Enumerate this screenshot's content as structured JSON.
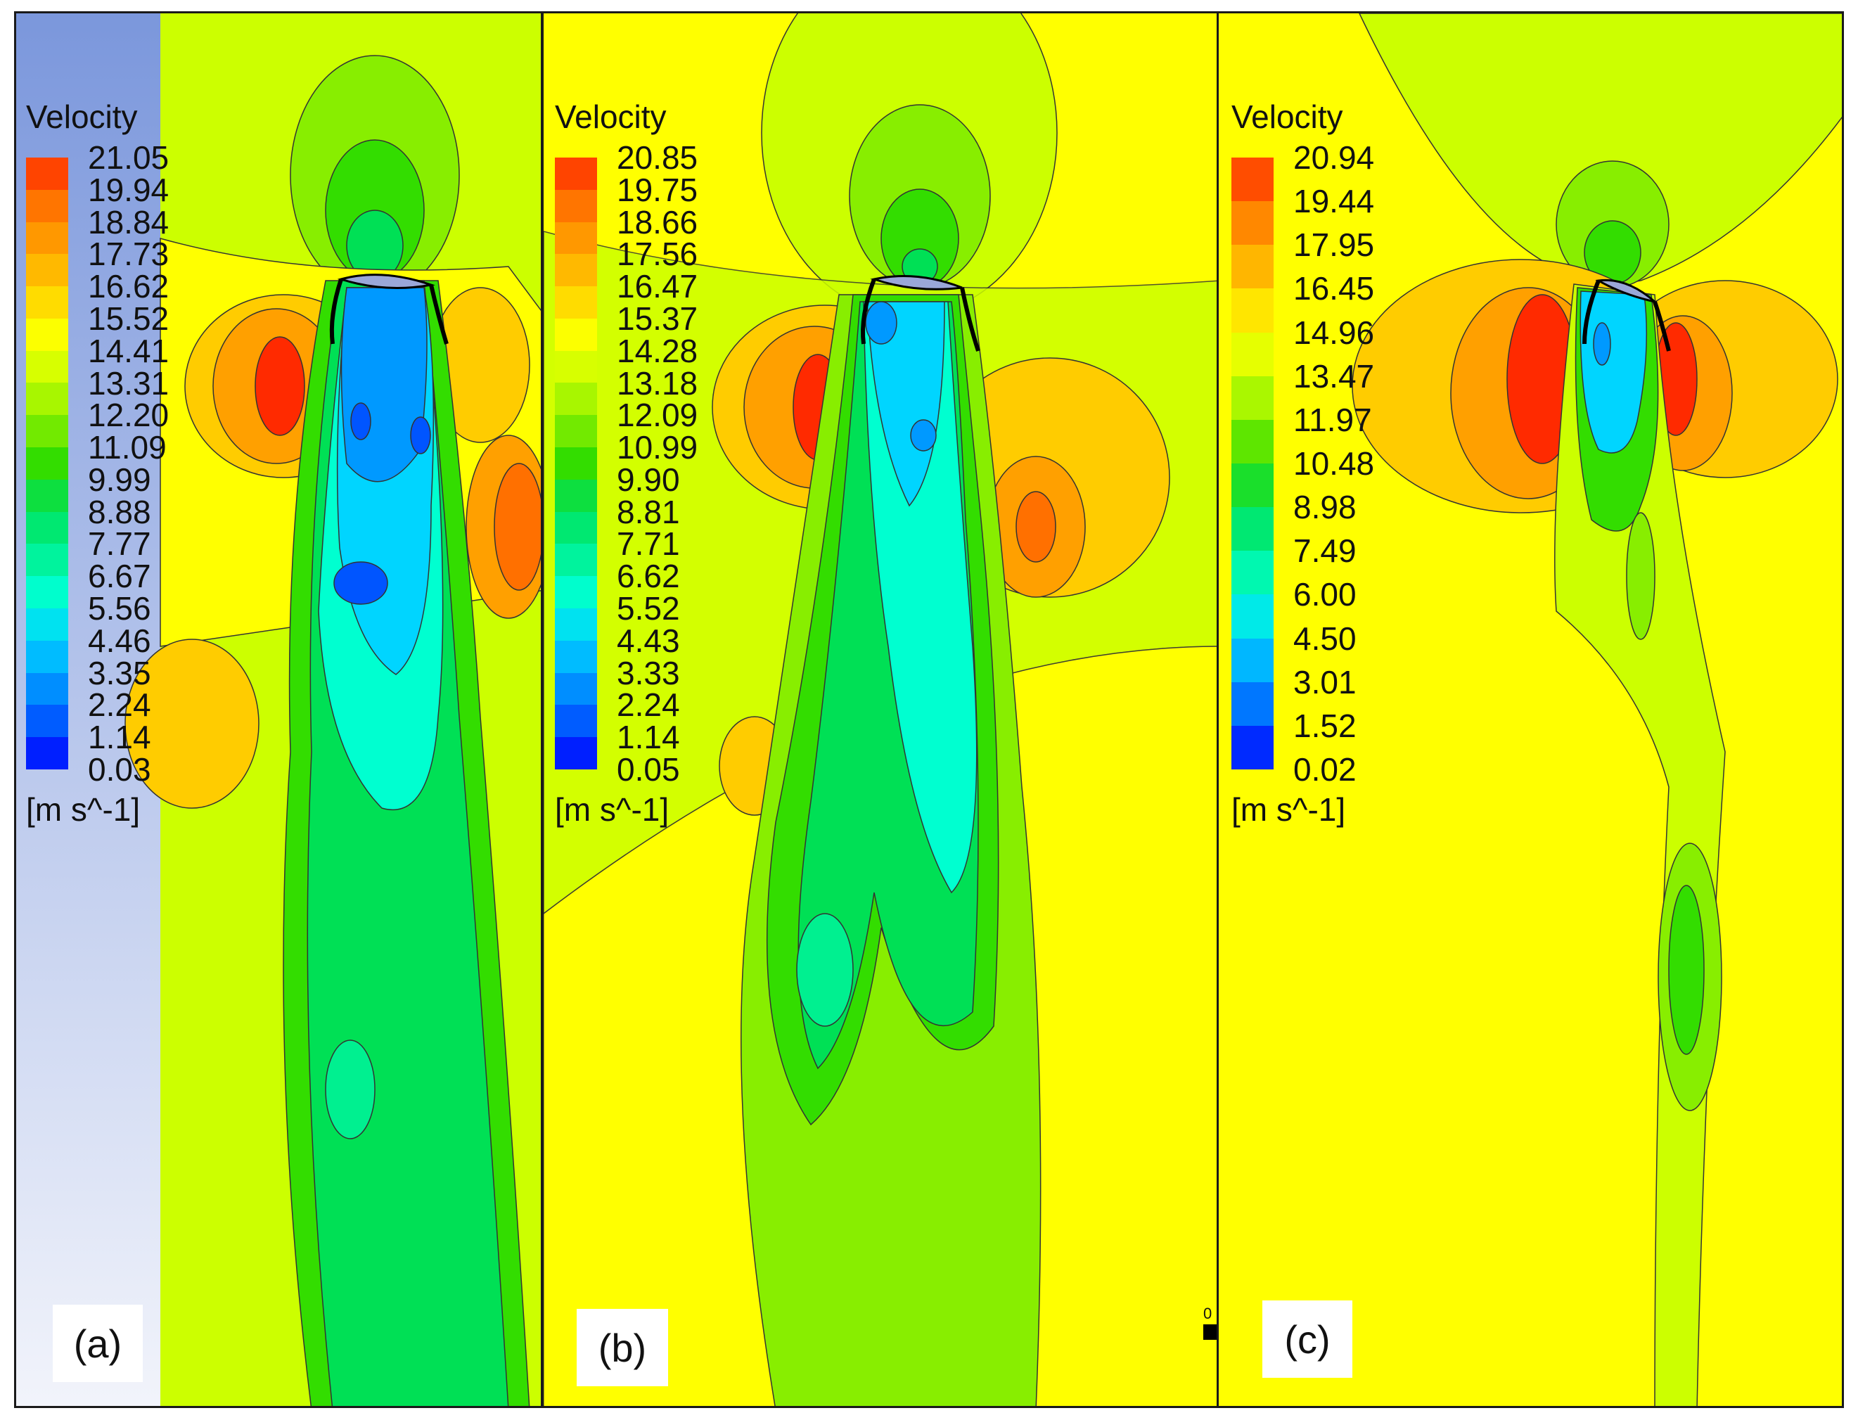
{
  "colors": {
    "jet": [
      "#0000ff",
      "#0055ff",
      "#0099ff",
      "#00d5ff",
      "#00ffd0",
      "#00f090",
      "#00e055",
      "#33dd00",
      "#88ee00",
      "#ccff00",
      "#ffff00",
      "#ffcc00",
      "#ffa000",
      "#ff7000",
      "#ff2a00"
    ],
    "background_strip": "#7b97dc",
    "airfoil": "#9aa7d8"
  },
  "panels": [
    {
      "id": "a",
      "label": "(a)",
      "legend": {
        "title": "Velocity",
        "unit": "[m s^-1]",
        "ticks": [
          "21.05",
          "19.94",
          "18.84",
          "17.73",
          "16.62",
          "15.52",
          "14.41",
          "13.31",
          "12.20",
          "11.09",
          "9.99",
          "8.88",
          "7.77",
          "6.67",
          "5.56",
          "4.46",
          "3.35",
          "2.24",
          "1.14",
          "0.03"
        ]
      }
    },
    {
      "id": "b",
      "label": "(b)",
      "corner_mark": "0",
      "legend": {
        "title": "Velocity",
        "unit": "[m s^-1]",
        "ticks": [
          "20.85",
          "19.75",
          "18.66",
          "17.56",
          "16.47",
          "15.37",
          "14.28",
          "13.18",
          "12.09",
          "10.99",
          "9.90",
          "8.81",
          "7.71",
          "6.62",
          "5.52",
          "4.43",
          "3.33",
          "2.24",
          "1.14",
          "0.05"
        ]
      }
    },
    {
      "id": "c",
      "label": "(c)",
      "legend": {
        "title": "Velocity",
        "unit": "[m s^-1]",
        "ticks": [
          "20.94",
          "19.44",
          "17.95",
          "16.45",
          "14.96",
          "13.47",
          "11.97",
          "10.48",
          "8.98",
          "7.49",
          "6.00",
          "4.50",
          "3.01",
          "1.52",
          "0.02"
        ]
      }
    }
  ]
}
